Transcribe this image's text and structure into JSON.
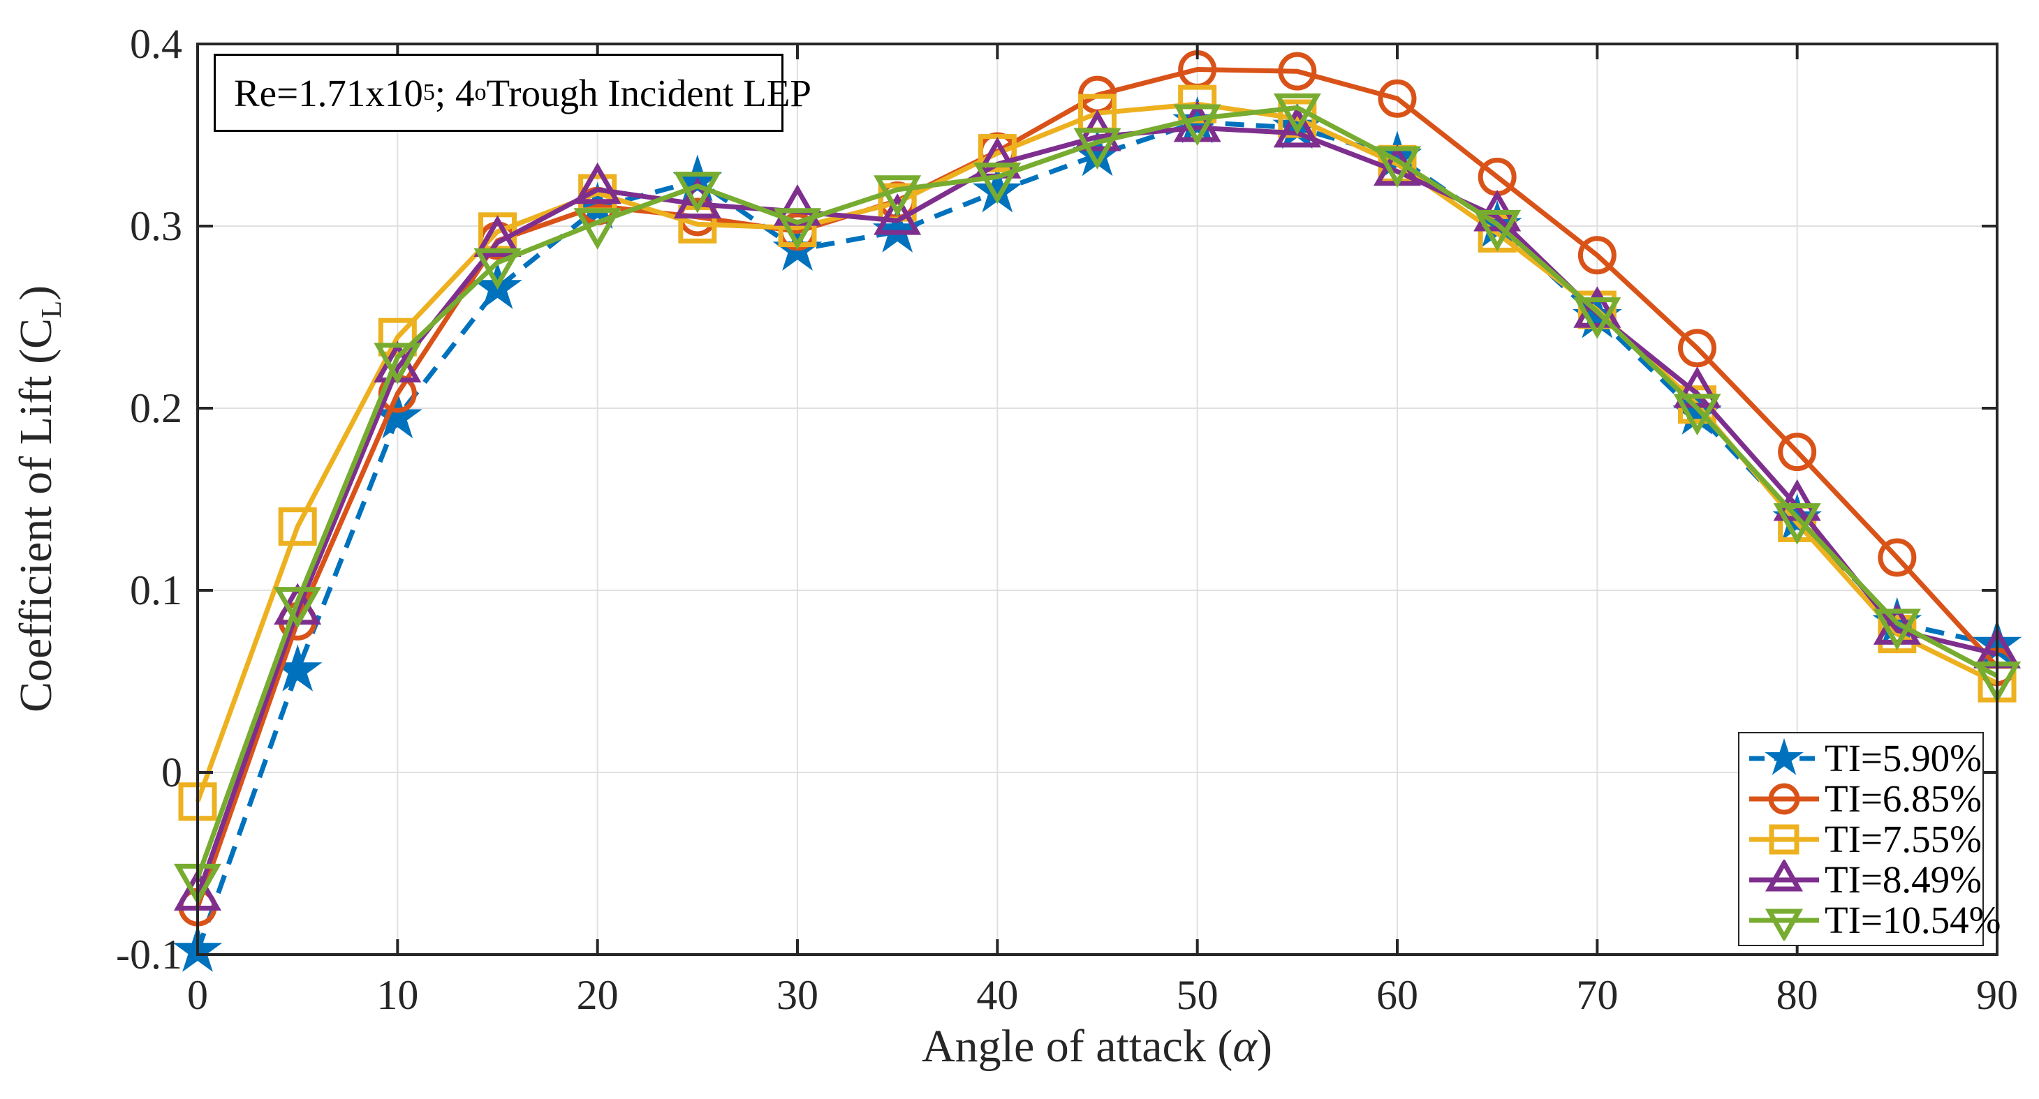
{
  "figure": {
    "background": "#ffffff",
    "axis_color": "#262626",
    "grid_color": "#e0e0e0"
  },
  "annotation": {
    "pre": "Re=1.71x10",
    "sup1": "5",
    "mid": "; 4",
    "sup2": "o",
    "post": " Trough Incident LEP"
  },
  "xaxis": {
    "label_pre": "Angle of attack (",
    "label_symbol": "α",
    "label_post": ")"
  },
  "yaxis": {
    "label_pre": "Coefficient of Lift (C",
    "label_sub": "L",
    "label_post": ")"
  },
  "chart_data": {
    "type": "line",
    "title": "Re=1.71x10^5; 4° Trough Incident LEP",
    "xlabel": "Angle of attack (α)",
    "ylabel": "Coefficient of Lift (C_L)",
    "xlim": [
      0,
      90
    ],
    "ylim": [
      -0.1,
      0.4
    ],
    "xticks": [
      0,
      10,
      20,
      30,
      40,
      50,
      60,
      70,
      80,
      90
    ],
    "xtick_labels": [
      "0",
      "10",
      "20",
      "30",
      "40",
      "50",
      "60",
      "70",
      "80",
      "90"
    ],
    "yticks": [
      -0.1,
      0,
      0.1,
      0.2,
      0.3,
      0.4
    ],
    "ytick_labels": [
      "-0.1",
      "0",
      "0.1",
      "0.2",
      "0.3",
      "0.4"
    ],
    "grid": true,
    "legend_position": "lower right",
    "x": [
      0,
      5,
      10,
      15,
      20,
      25,
      30,
      35,
      40,
      45,
      50,
      55,
      60,
      65,
      70,
      75,
      80,
      85,
      90
    ],
    "series": [
      {
        "label": "TI=5.90%",
        "color": "#0072BD",
        "marker": "star",
        "line_style": "dashed",
        "values": [
          -0.098,
          0.056,
          0.195,
          0.266,
          0.31,
          0.325,
          0.287,
          0.297,
          0.319,
          0.339,
          0.357,
          0.354,
          0.338,
          0.3,
          0.25,
          0.197,
          0.139,
          0.082,
          0.07
        ]
      },
      {
        "label": "TI=6.85%",
        "color": "#D95319",
        "marker": "circle",
        "line_style": "solid",
        "values": [
          -0.074,
          0.083,
          0.208,
          0.292,
          0.311,
          0.305,
          0.297,
          0.314,
          0.341,
          0.372,
          0.386,
          0.385,
          0.37,
          0.327,
          0.284,
          0.233,
          0.176,
          0.118,
          0.058
        ]
      },
      {
        "label": "TI=7.55%",
        "color": "#EDB120",
        "marker": "square",
        "line_style": "solid",
        "values": [
          -0.016,
          0.135,
          0.239,
          0.297,
          0.318,
          0.301,
          0.299,
          0.313,
          0.34,
          0.362,
          0.367,
          0.359,
          0.334,
          0.296,
          0.254,
          0.202,
          0.137,
          0.076,
          0.049
        ]
      },
      {
        "label": "TI=8.49%",
        "color": "#7E2F8E",
        "marker": "triangle-up",
        "line_style": "solid",
        "values": [
          -0.068,
          0.089,
          0.222,
          0.291,
          0.32,
          0.312,
          0.308,
          0.303,
          0.334,
          0.349,
          0.354,
          0.351,
          0.33,
          0.305,
          0.252,
          0.208,
          0.146,
          0.078,
          0.065
        ]
      },
      {
        "label": "TI=10.54%",
        "color": "#77AC30",
        "marker": "triangle-down",
        "line_style": "solid",
        "values": [
          -0.058,
          0.094,
          0.228,
          0.28,
          0.302,
          0.322,
          0.302,
          0.32,
          0.327,
          0.346,
          0.359,
          0.365,
          0.336,
          0.301,
          0.253,
          0.2,
          0.14,
          0.082,
          0.053
        ]
      }
    ]
  }
}
